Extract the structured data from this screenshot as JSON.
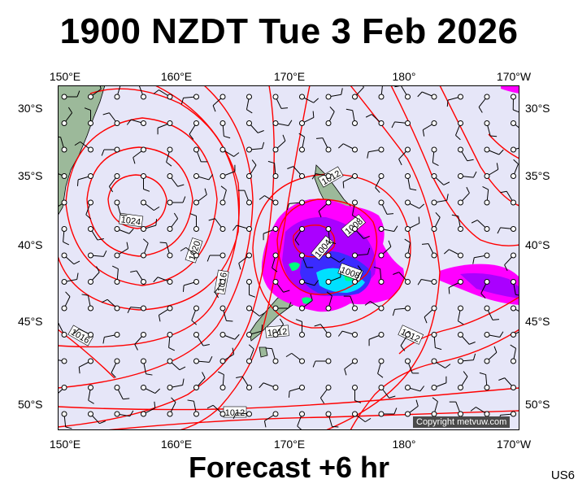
{
  "title": "1900 NZDT Tue 3 Feb 2026",
  "footer": "Forecast +6 hr",
  "model_code": "US6",
  "copyright": "Copyright metvuw.com",
  "axes": {
    "lon_labels": [
      "150°E",
      "160°E",
      "170°E",
      "180°",
      "170°W"
    ],
    "lat_labels": [
      "30°S",
      "35°S",
      "40°S",
      "45°S",
      "50°S"
    ]
  },
  "isobar_labels": [
    "1024",
    "1020",
    "1016",
    "1016",
    "1012",
    "1008",
    "1004",
    "1008",
    "1012",
    "1012",
    "1012"
  ],
  "colors": {
    "background": "#e6e6f8",
    "isobar": "#ff0000",
    "land": "#9cb99a",
    "rain_light": "#ff00ff",
    "rain_moderate": "#aa00ff",
    "rain_heavy": "#3b2bff",
    "rain_intense": "#00e0ff",
    "rain_extreme": "#00ff7f"
  }
}
